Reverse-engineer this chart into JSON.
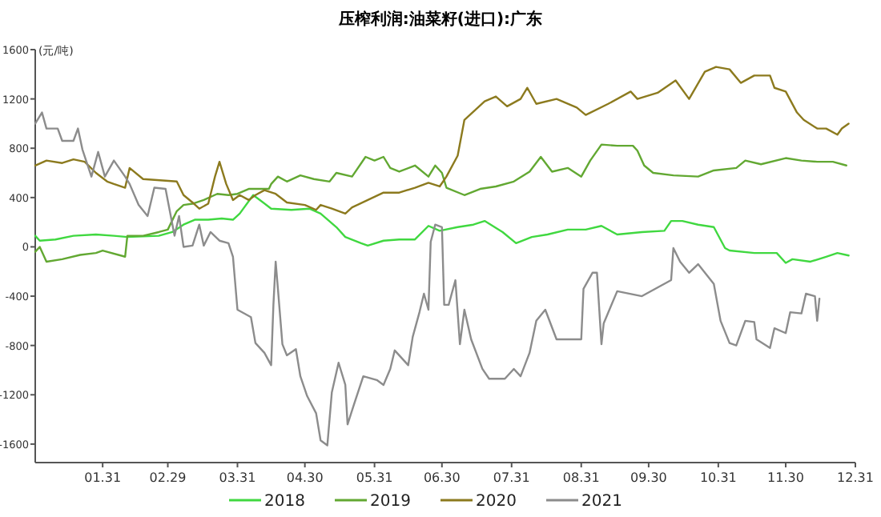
{
  "chart_data": {
    "type": "line",
    "title": "压榨利润:油菜籽(进口):广东",
    "ylabel": "(元/吨)",
    "xlim": [
      "--01-01",
      "--12-31"
    ],
    "xticks": [
      {
        "value": "--01-31",
        "label": "01.31"
      },
      {
        "value": "--02-29",
        "label": "02.29"
      },
      {
        "value": "--03-31",
        "label": "03.31"
      },
      {
        "value": "--04-30",
        "label": "04.30"
      },
      {
        "value": "--05-31",
        "label": "05.31"
      },
      {
        "value": "--06-30",
        "label": "06.30"
      },
      {
        "value": "--07-31",
        "label": "07.31"
      },
      {
        "value": "--08-31",
        "label": "08.31"
      },
      {
        "value": "--09-30",
        "label": "09.30"
      },
      {
        "value": "--10-31",
        "label": "10.31"
      },
      {
        "value": "--11-30",
        "label": "11.30"
      },
      {
        "value": "--12-31",
        "label": "12.31"
      }
    ],
    "ylim": [
      -1750,
      1600
    ],
    "yticks": [
      -1600,
      -1200,
      -800,
      -400,
      0,
      400,
      800,
      1200,
      1600
    ],
    "grid": false,
    "legend": "bottom",
    "marker": "none",
    "line_style": "solid",
    "series": [
      {
        "name": "2018",
        "color": "#40d840",
        "x": [
          "--01-01",
          "--01-03",
          "--01-10",
          "--01-18",
          "--01-28",
          "--02-05",
          "--02-11",
          "--02-25",
          "--03-02",
          "--03-07",
          "--03-12",
          "--03-18",
          "--03-24",
          "--03-29",
          "--04-01",
          "--04-07",
          "--04-10",
          "--04-15",
          "--04-24",
          "--05-02",
          "--05-07",
          "--05-14",
          "--05-18",
          "--05-25",
          "--05-28",
          "--06-04",
          "--06-11",
          "--06-18",
          "--06-24",
          "--06-29",
          "--07-07",
          "--07-14",
          "--07-19",
          "--07-27",
          "--08-02",
          "--08-09",
          "--08-16",
          "--08-25",
          "--09-02",
          "--09-09",
          "--09-16",
          "--09-27",
          "--10-07",
          "--10-10",
          "--10-15",
          "--10-22",
          "--10-29",
          "--11-03",
          "--11-05",
          "--11-16",
          "--11-26",
          "--11-30",
          "--12-03",
          "--12-11",
          "--12-18",
          "--12-23",
          "--12-28"
        ],
        "values": [
          90,
          50,
          60,
          90,
          100,
          90,
          80,
          90,
          120,
          180,
          220,
          220,
          230,
          220,
          270,
          420,
          380,
          310,
          300,
          310,
          270,
          160,
          80,
          30,
          10,
          50,
          60,
          60,
          170,
          130,
          160,
          180,
          210,
          120,
          30,
          80,
          100,
          140,
          140,
          170,
          100,
          120,
          130,
          210,
          210,
          180,
          160,
          -10,
          -30,
          -50,
          -50,
          -130,
          -100,
          -120,
          -80,
          -50,
          -70
        ]
      },
      {
        "name": "2019",
        "color": "#62a832",
        "x": [
          "--01-01",
          "--01-03",
          "--01-06",
          "--01-13",
          "--01-21",
          "--01-28",
          "--01-31",
          "--02-10",
          "--02-11",
          "--02-18",
          "--02-25",
          "--02-29",
          "--03-04",
          "--03-07",
          "--03-11",
          "--03-16",
          "--03-22",
          "--03-27",
          "--03-31",
          "--04-05",
          "--04-14",
          "--04-15",
          "--04-18",
          "--04-22",
          "--04-28",
          "--05-04",
          "--05-11",
          "--05-14",
          "--05-21",
          "--05-27",
          "--05-31",
          "--06-04",
          "--06-07",
          "--06-11",
          "--06-18",
          "--06-24",
          "--06-27",
          "--06-30",
          "--07-02",
          "--07-10",
          "--07-17",
          "--07-24",
          "--08-01",
          "--08-08",
          "--08-13",
          "--08-18",
          "--08-25",
          "--08-31",
          "--09-04",
          "--09-09",
          "--09-16",
          "--09-23",
          "--09-25",
          "--09-28",
          "--10-02",
          "--10-11",
          "--10-22",
          "--10-29",
          "--11-08",
          "--11-12",
          "--11-19",
          "--11-30",
          "--12-07",
          "--12-14",
          "--12-21",
          "--12-27"
        ],
        "values": [
          -40,
          0,
          -120,
          -100,
          -65,
          -50,
          -30,
          -80,
          90,
          90,
          120,
          140,
          290,
          340,
          350,
          380,
          430,
          420,
          430,
          470,
          470,
          510,
          570,
          530,
          580,
          550,
          530,
          600,
          570,
          730,
          700,
          730,
          640,
          610,
          660,
          570,
          660,
          600,
          480,
          420,
          470,
          490,
          530,
          610,
          730,
          610,
          640,
          570,
          700,
          830,
          820,
          820,
          780,
          660,
          600,
          580,
          570,
          620,
          640,
          700,
          670,
          720,
          700,
          690,
          690,
          660
        ]
      },
      {
        "name": "2020",
        "color": "#8c7a1e",
        "x": [
          "--01-01",
          "--01-06",
          "--01-13",
          "--01-18",
          "--01-23",
          "--01-28",
          "--02-02",
          "--02-05",
          "--02-10",
          "--02-12",
          "--02-18",
          "--03-04",
          "--03-07",
          "--03-11",
          "--03-14",
          "--03-18",
          "--03-21",
          "--03-23",
          "--03-26",
          "--03-29",
          "--04-01",
          "--04-05",
          "--04-08",
          "--04-12",
          "--04-17",
          "--04-22",
          "--04-30",
          "--05-05",
          "--05-07",
          "--05-12",
          "--05-18",
          "--05-21",
          "--05-28",
          "--06-04",
          "--06-11",
          "--06-18",
          "--06-24",
          "--06-29",
          "--07-02",
          "--07-07",
          "--07-10",
          "--07-19",
          "--07-24",
          "--07-29",
          "--08-04",
          "--08-07",
          "--08-11",
          "--08-20",
          "--08-29",
          "--09-02",
          "--09-12",
          "--09-22",
          "--09-25",
          "--10-04",
          "--10-12",
          "--10-18",
          "--10-25",
          "--10-30",
          "--11-05",
          "--11-10",
          "--11-16",
          "--11-23",
          "--11-25",
          "--11-30",
          "--12-05",
          "--12-08",
          "--12-14",
          "--12-18",
          "--12-23",
          "--12-25",
          "--12-28"
        ],
        "values": [
          660,
          700,
          680,
          710,
          690,
          600,
          530,
          510,
          480,
          640,
          550,
          530,
          420,
          360,
          310,
          350,
          570,
          690,
          510,
          380,
          420,
          380,
          420,
          460,
          430,
          360,
          340,
          300,
          340,
          310,
          270,
          320,
          380,
          440,
          440,
          480,
          520,
          490,
          570,
          740,
          1030,
          1180,
          1220,
          1140,
          1200,
          1290,
          1160,
          1200,
          1130,
          1070,
          1160,
          1260,
          1200,
          1250,
          1350,
          1200,
          1420,
          1460,
          1440,
          1330,
          1390,
          1390,
          1290,
          1260,
          1090,
          1030,
          960,
          960,
          910,
          960,
          1000
        ]
      },
      {
        "name": "2021",
        "color": "#8c8c8c",
        "x": [
          "--01-01",
          "--01-04",
          "--01-06",
          "--01-11",
          "--01-13",
          "--01-18",
          "--01-20",
          "--01-22",
          "--01-26",
          "--01-29",
          "--02-01",
          "--02-05",
          "--02-10",
          "--02-12",
          "--02-16",
          "--02-20",
          "--02-23",
          "--02-28",
          "--03-03",
          "--03-05",
          "--03-07",
          "--03-11",
          "--03-14",
          "--03-16",
          "--03-19",
          "--03-23",
          "--03-27",
          "--03-29",
          "--03-31",
          "--04-06",
          "--04-08",
          "--04-12",
          "--04-15",
          "--04-16",
          "--04-17",
          "--04-18",
          "--04-20",
          "--04-22",
          "--04-26",
          "--04-28",
          "--05-01",
          "--05-05",
          "--05-07",
          "--05-10",
          "--05-12",
          "--05-15",
          "--05-18",
          "--05-19",
          "--05-22",
          "--05-26",
          "--06-01",
          "--06-04",
          "--06-07",
          "--06-09",
          "--06-15",
          "--06-17",
          "--06-20",
          "--06-22",
          "--06-24",
          "--06-25",
          "--06-27",
          "--06-30",
          "--07-01",
          "--07-03",
          "--07-06",
          "--07-08",
          "--07-10",
          "--07-13",
          "--07-18",
          "--07-21",
          "--07-28",
          "--08-01",
          "--08-04",
          "--08-08",
          "--08-11",
          "--08-15",
          "--08-20",
          "--08-31",
          "--09-01",
          "--09-05",
          "--09-07",
          "--09-09",
          "--09-10",
          "--09-16",
          "--09-27",
          "--10-10",
          "--10-11",
          "--10-14",
          "--10-18",
          "--10-22",
          "--10-29",
          "--11-01",
          "--11-05",
          "--11-08",
          "--11-12",
          "--11-16",
          "--11-17",
          "--11-23",
          "--11-25",
          "--11-30",
          "--12-02",
          "--12-07",
          "--12-09",
          "--12-13",
          "--12-14",
          "--12-15"
        ],
        "values": [
          1000,
          1090,
          960,
          960,
          860,
          860,
          960,
          790,
          570,
          770,
          570,
          700,
          570,
          510,
          340,
          250,
          480,
          470,
          90,
          250,
          0,
          10,
          180,
          10,
          120,
          50,
          30,
          -80,
          -510,
          -570,
          -780,
          -860,
          -960,
          -470,
          -120,
          -340,
          -790,
          -880,
          -830,
          -1050,
          -1210,
          -1350,
          -1570,
          -1610,
          -1180,
          -940,
          -1120,
          -1440,
          -1270,
          -1050,
          -1080,
          -1120,
          -990,
          -840,
          -960,
          -730,
          -530,
          -380,
          -510,
          40,
          180,
          160,
          -470,
          -470,
          -270,
          -790,
          -510,
          -750,
          -990,
          -1070,
          -1070,
          -990,
          -1050,
          -860,
          -600,
          -510,
          -750,
          -750,
          -340,
          -210,
          -210,
          -790,
          -620,
          -360,
          -400,
          -270,
          -10,
          -120,
          -210,
          -140,
          -300,
          -600,
          -780,
          -800,
          -600,
          -610,
          -750,
          -820,
          -660,
          -700,
          -530,
          -540,
          -380,
          -400,
          -600,
          -420
        ]
      }
    ]
  }
}
